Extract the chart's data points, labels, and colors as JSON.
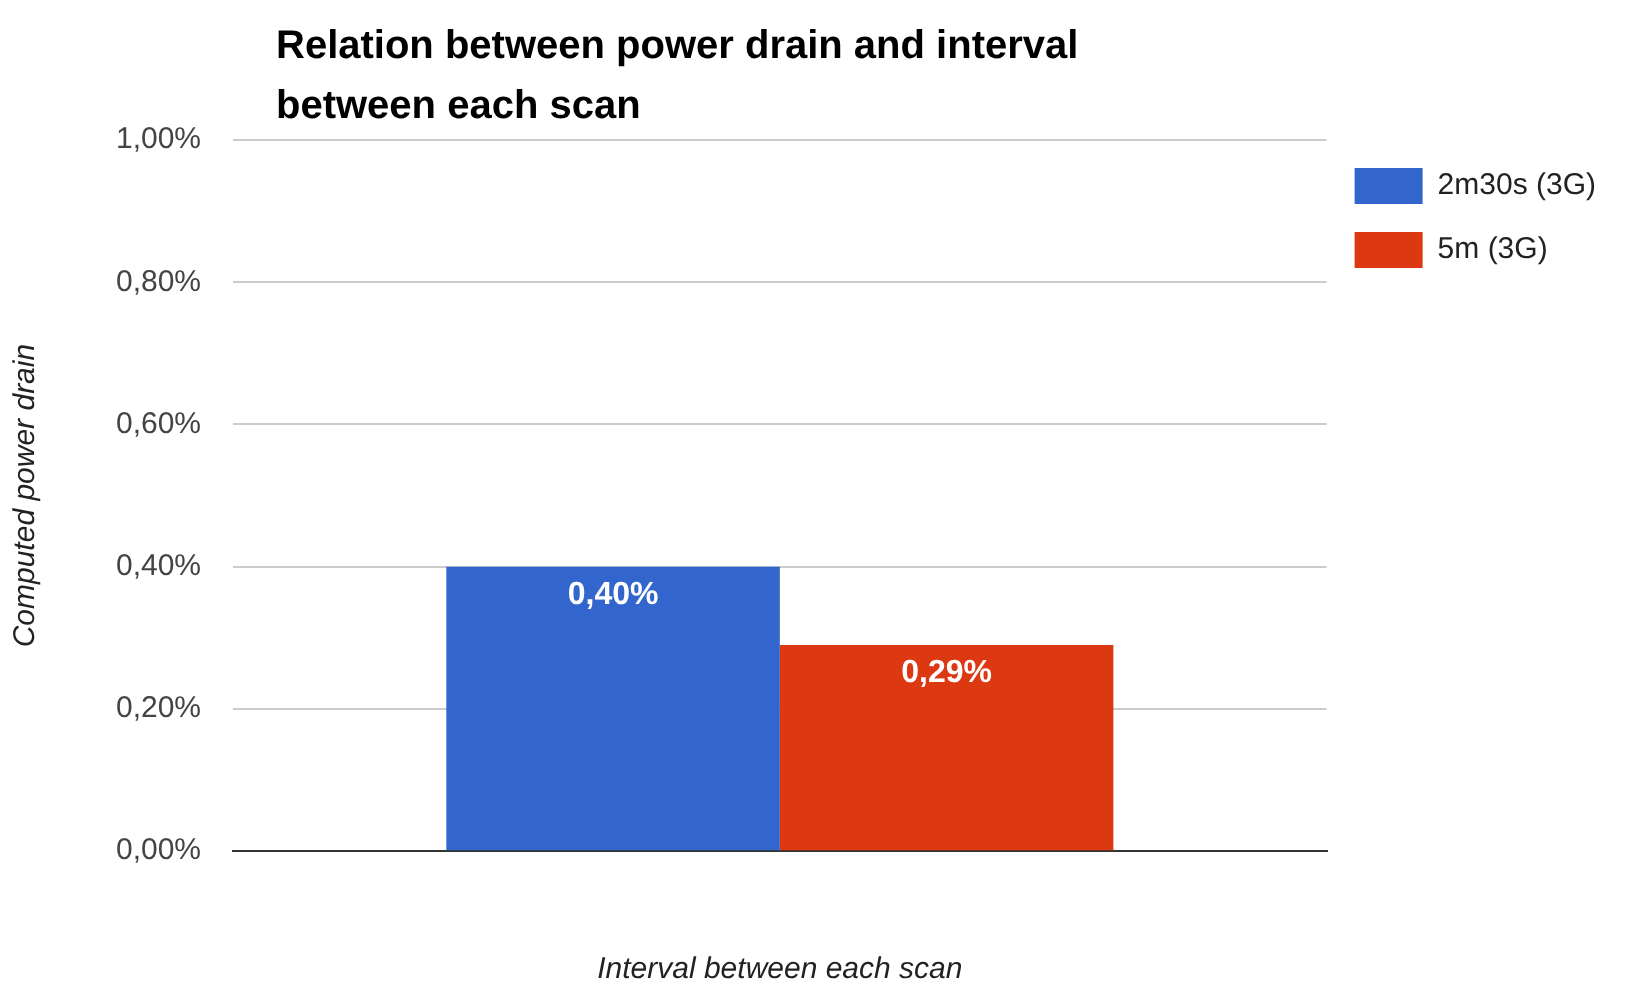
{
  "chart_data": {
    "type": "bar",
    "title": "Relation between power drain and interval between each scan",
    "xlabel": "Interval between each scan",
    "ylabel": "Computed power drain",
    "categories": [
      null
    ],
    "series": [
      {
        "name": "2m30s (3G)",
        "color": "#3366cc",
        "values": [
          0.4
        ],
        "value_labels": [
          "0,40%"
        ]
      },
      {
        "name": "5m (3G)",
        "color": "#dc3912",
        "values": [
          0.29
        ],
        "value_labels": [
          "0,29%"
        ]
      }
    ],
    "ylim": [
      0,
      1
    ],
    "yticks": [
      {
        "value": 0,
        "label": "0,00%"
      },
      {
        "value": 0.2,
        "label": "0,20%"
      },
      {
        "value": 0.4,
        "label": "0,40%"
      },
      {
        "value": 0.6,
        "label": "0,60%"
      },
      {
        "value": 0.8,
        "label": "0,80%"
      },
      {
        "value": 1,
        "label": "1,00%"
      }
    ],
    "grid": "y",
    "legend": "top right"
  }
}
